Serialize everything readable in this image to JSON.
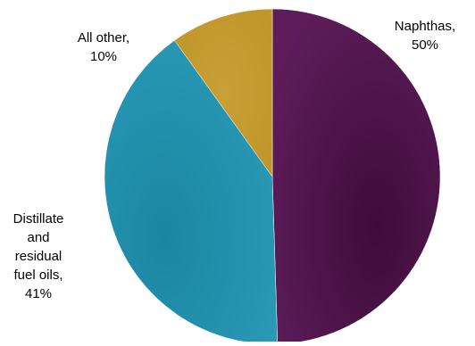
{
  "chart_data": {
    "type": "pie",
    "title": "",
    "slices": [
      {
        "label": "Naphthas",
        "value": 50,
        "display": [
          "Naphthas,",
          "50%"
        ],
        "color": "#4a1246"
      },
      {
        "label": "Distillate and residual fuel oils",
        "value": 41,
        "display": [
          "Distillate",
          "and",
          "residual",
          "fuel oils,",
          "41%"
        ],
        "color": "#1e8fab"
      },
      {
        "label": "All other",
        "value": 10,
        "display": [
          "All other,",
          "10%"
        ],
        "color": "#c69a2e"
      }
    ],
    "legend": "none",
    "labels_placement": "outside"
  }
}
